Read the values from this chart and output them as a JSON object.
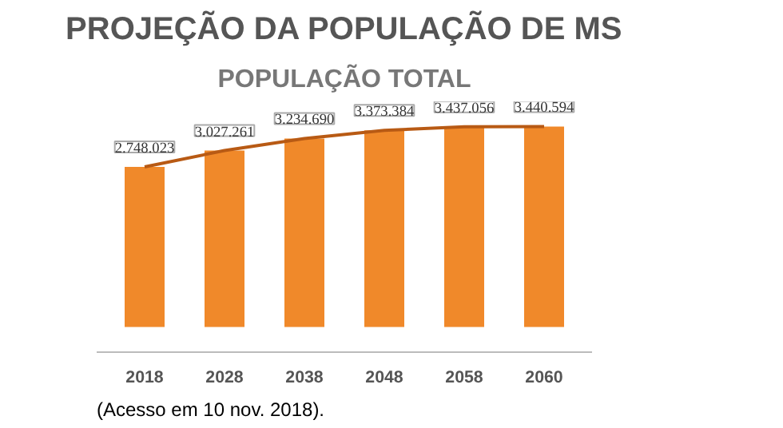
{
  "chart_data": {
    "type": "bar",
    "title": "PROJEÇÃO DA POPULAÇÃO DE MS",
    "subtitle": "POPULAÇÃO TOTAL",
    "categories": [
      "2018",
      "2028",
      "2038",
      "2048",
      "2058",
      "2060"
    ],
    "series": [
      {
        "color": "#f0892a",
        "values": [
          2748023,
          3027261,
          3234690,
          3373384,
          3437056,
          3440594
        ],
        "value_labels": [
          "2.748.023",
          "3.027.261",
          "3.234.690",
          "3.373.384",
          "3.437.056",
          "3.440.594"
        ]
      },
      {
        "type": "line",
        "color": "#b85a14",
        "values": [
          2748023,
          3027261,
          3234690,
          3373384,
          3437056,
          3440594
        ]
      }
    ],
    "grid": false,
    "tick_labels": "x",
    "annotations": [
      "(Acesso em 10 nov. 2018)."
    ]
  }
}
